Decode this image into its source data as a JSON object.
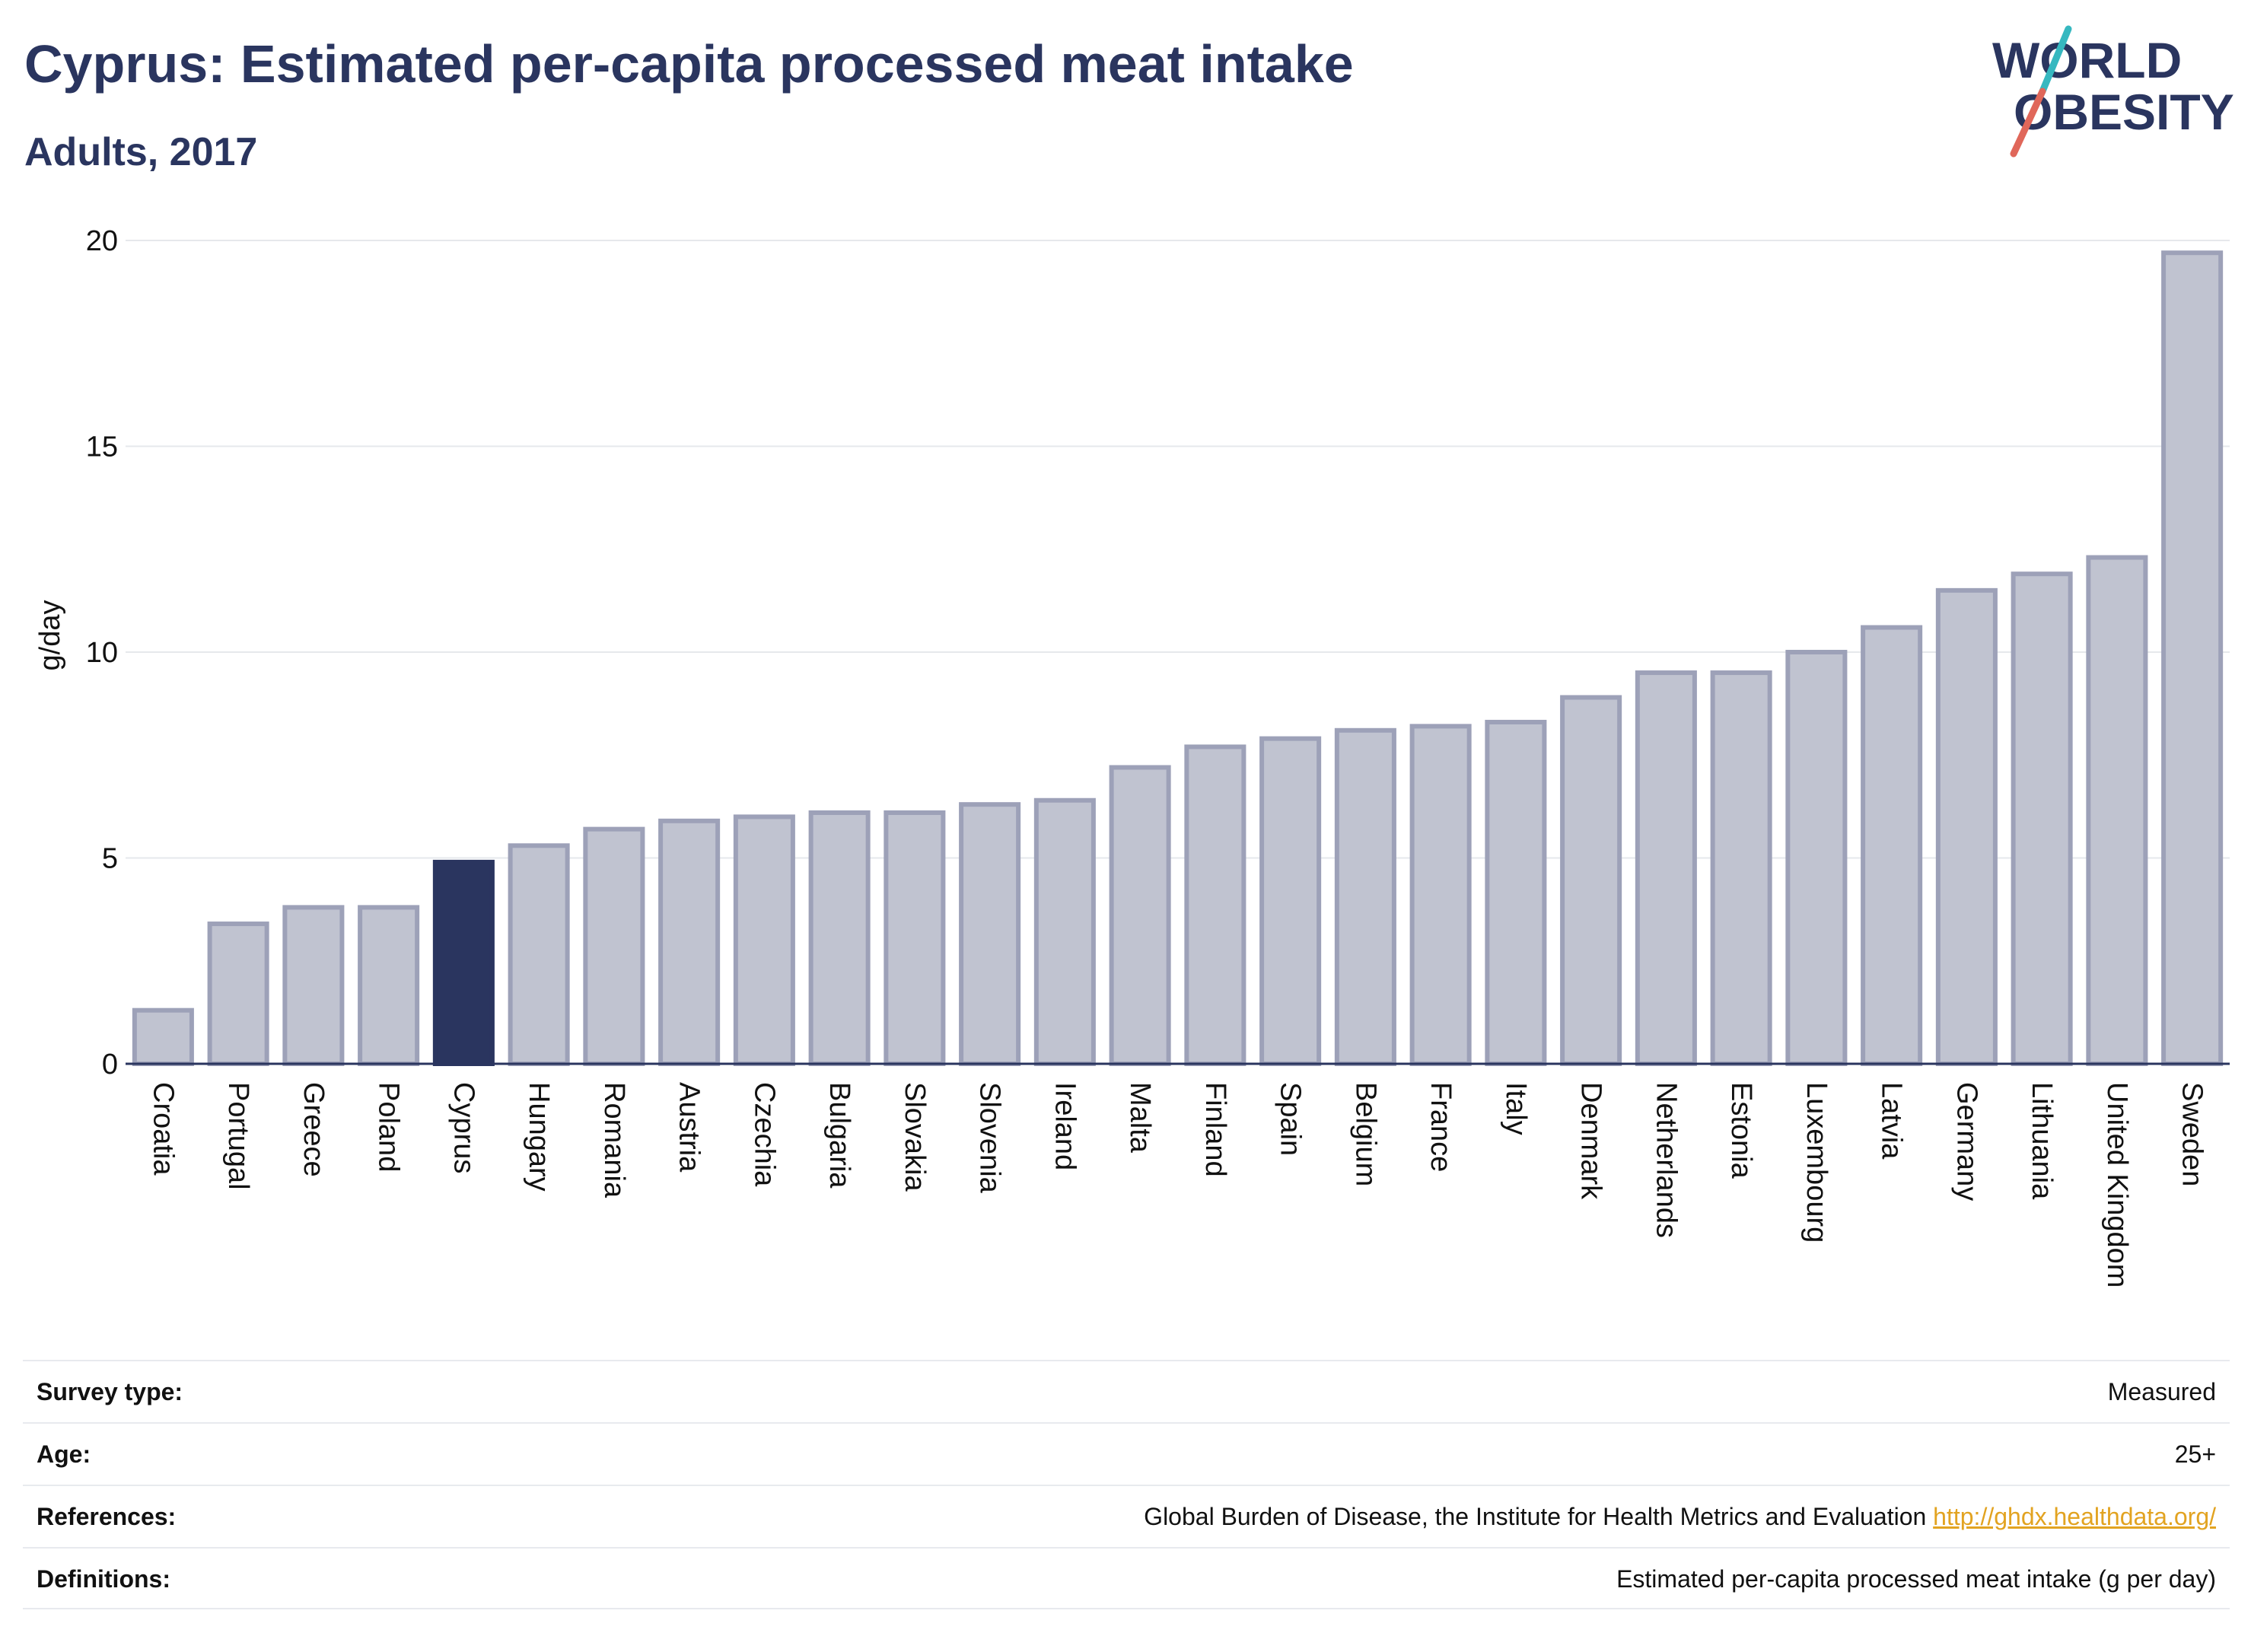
{
  "title": "Cyprus: Estimated per-capita processed meat intake",
  "subtitle": "Adults, 2017",
  "logo": {
    "line1": "WORLD",
    "line2": "OBESITY",
    "slash_color_top": "#36b8c0",
    "slash_color_bottom": "#e0675a",
    "text_color": "#2a355f"
  },
  "chart_data": {
    "type": "bar",
    "ylabel": "g/day",
    "ylim": [
      0,
      20
    ],
    "yticks": [
      0,
      5,
      10,
      15,
      20
    ],
    "grid": true,
    "highlight": "Cyprus",
    "highlight_color": "#2a355f",
    "bar_color": "#c0c3d0",
    "bar_border_color": "#9da1b8",
    "categories": [
      "Croatia",
      "Portugal",
      "Greece",
      "Poland",
      "Cyprus",
      "Hungary",
      "Romania",
      "Austria",
      "Czechia",
      "Bulgaria",
      "Slovakia",
      "Slovenia",
      "Ireland",
      "Malta",
      "Finland",
      "Spain",
      "Belgium",
      "France",
      "Italy",
      "Denmark",
      "Netherlands",
      "Estonia",
      "Luxembourg",
      "Latvia",
      "Germany",
      "Lithuania",
      "United Kingdom",
      "Sweden"
    ],
    "values": [
      1.3,
      3.4,
      3.8,
      3.8,
      4.9,
      5.3,
      5.7,
      5.9,
      6.0,
      6.1,
      6.1,
      6.3,
      6.4,
      7.2,
      7.7,
      7.9,
      8.1,
      8.2,
      8.3,
      8.9,
      9.5,
      9.5,
      10.0,
      10.6,
      11.5,
      11.9,
      12.3,
      19.7
    ]
  },
  "info": [
    {
      "key": "Survey type:",
      "value": "Measured"
    },
    {
      "key": "Age:",
      "value": "25+"
    },
    {
      "key": "References:",
      "value": "Global Burden of Disease, the Institute for Health Metrics and Evaluation",
      "link": "http://ghdx.healthdata.org/"
    },
    {
      "key": "Definitions:",
      "value": "Estimated per-capita processed meat intake (g per day)"
    }
  ]
}
